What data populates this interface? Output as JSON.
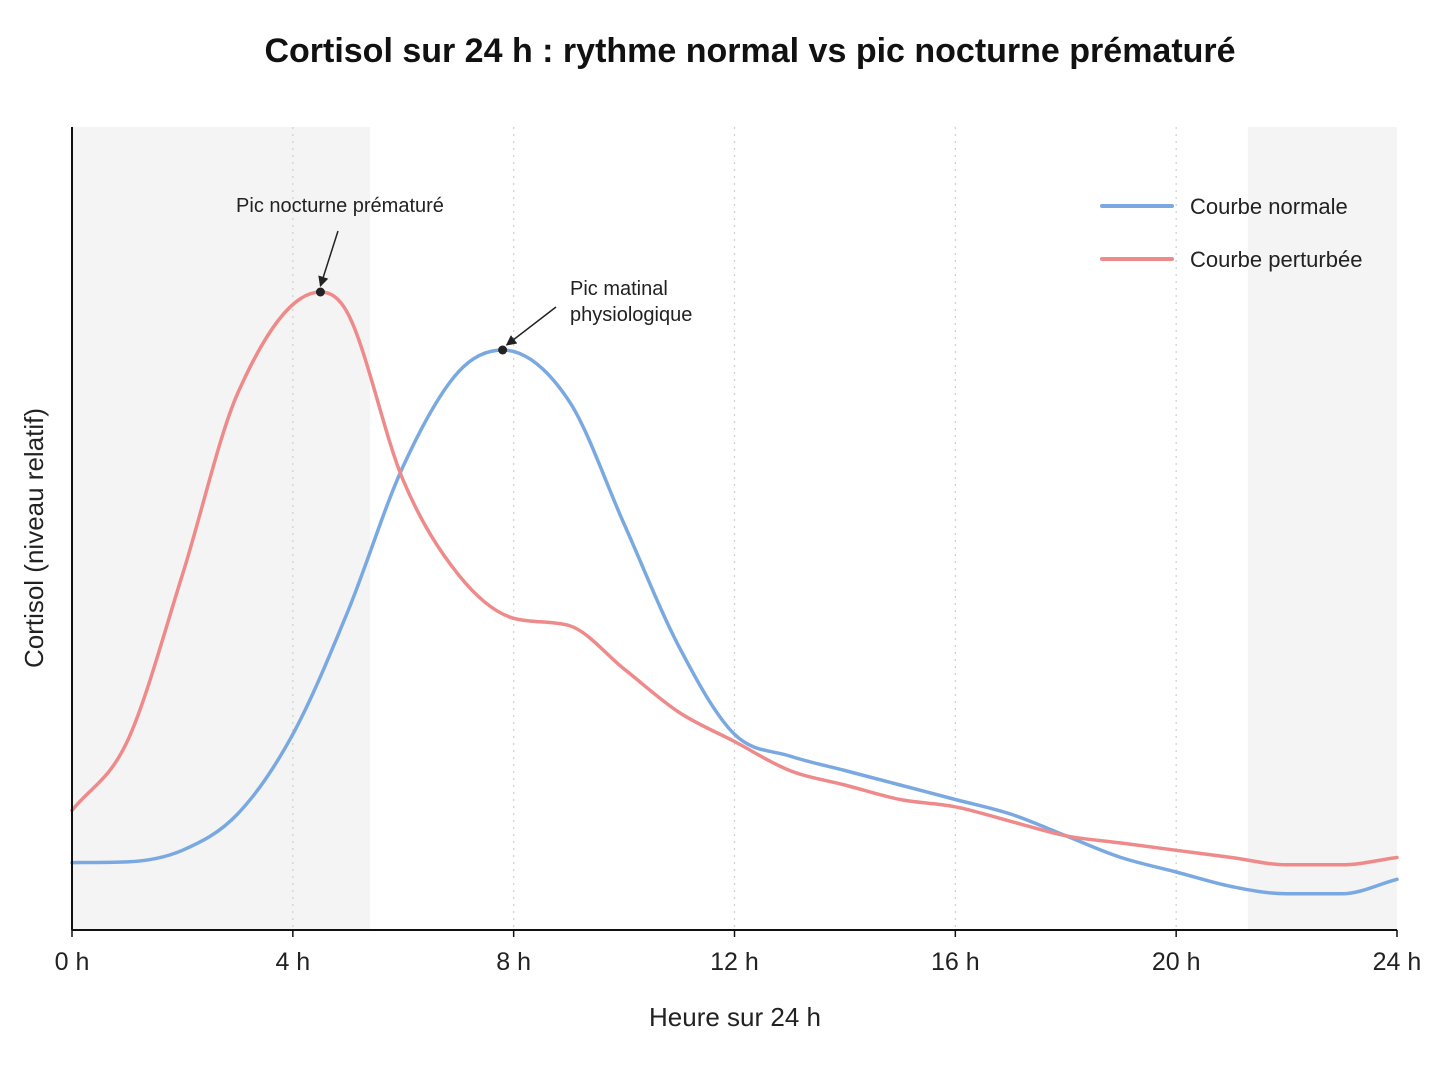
{
  "chart_data": {
    "type": "line",
    "title": "Cortisol sur 24 h : rythme normal vs pic nocturne prématuré",
    "xlabel": "Heure sur 24 h",
    "ylabel": "Cortisol (niveau relatif)",
    "xlim": [
      0,
      24
    ],
    "ylim": [
      0,
      1
    ],
    "x_ticks": [
      {
        "value": 0,
        "label": "0 h"
      },
      {
        "value": 4,
        "label": "4 h"
      },
      {
        "value": 8,
        "label": "8 h"
      },
      {
        "value": 12,
        "label": "12 h"
      },
      {
        "value": 16,
        "label": "16 h"
      },
      {
        "value": 20,
        "label": "20 h"
      },
      {
        "value": 24,
        "label": "24 h"
      }
    ],
    "grid": "vertical-dotted",
    "shaded_ranges": [
      [
        0,
        5.4
      ],
      [
        21.3,
        24
      ]
    ],
    "legend_position": "top-right",
    "series": [
      {
        "name": "Courbe normale",
        "color": "#7aa9e2",
        "x": [
          0,
          1,
          2,
          3,
          4,
          5,
          6,
          7,
          7.8,
          9,
          10,
          11,
          12,
          13,
          14,
          15,
          16,
          17,
          18,
          19,
          20,
          21,
          22,
          23,
          24
        ],
        "y": [
          0.093,
          0.094,
          0.11,
          0.16,
          0.27,
          0.44,
          0.64,
          0.77,
          0.8,
          0.73,
          0.56,
          0.39,
          0.27,
          0.24,
          0.22,
          0.2,
          0.18,
          0.16,
          0.13,
          0.1,
          0.08,
          0.06,
          0.05,
          0.05,
          0.07
        ]
      },
      {
        "name": "Courbe perturbée",
        "color": "#ef8a8a",
        "x": [
          0,
          1,
          2,
          3,
          4.5,
          5,
          6,
          7,
          8,
          9,
          10,
          11,
          12,
          13,
          14,
          15,
          16,
          17,
          18,
          19,
          20,
          21,
          22,
          23,
          24
        ],
        "y": [
          0.165,
          0.26,
          0.49,
          0.74,
          0.88,
          0.85,
          0.62,
          0.49,
          0.43,
          0.42,
          0.36,
          0.3,
          0.26,
          0.22,
          0.2,
          0.18,
          0.17,
          0.15,
          0.13,
          0.12,
          0.11,
          0.1,
          0.09,
          0.09,
          0.1
        ]
      }
    ],
    "annotations": [
      {
        "lines": [
          "Pic nocturne prématuré"
        ],
        "x": 4.5,
        "y": 0.88,
        "series": 1
      },
      {
        "lines": [
          "Pic matinal",
          "physiologique"
        ],
        "x": 7.8,
        "y": 0.8,
        "series": 0
      }
    ]
  }
}
